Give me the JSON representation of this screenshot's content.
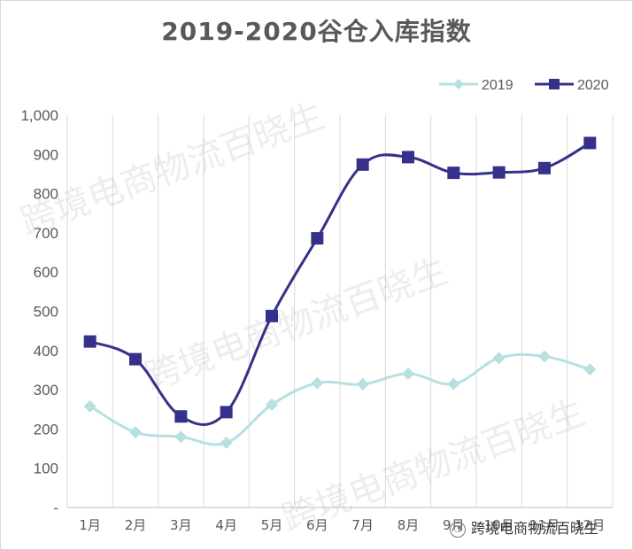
{
  "chart_data": {
    "type": "line",
    "title": "2019-2020谷仓入库指数",
    "categories": [
      "1月",
      "2月",
      "3月",
      "4月",
      "5月",
      "6月",
      "7月",
      "8月",
      "9月",
      "10月",
      "11月",
      "12月"
    ],
    "y_ticks": [
      "-",
      "100",
      "200",
      "300",
      "400",
      "500",
      "600",
      "700",
      "800",
      "900",
      "1,000"
    ],
    "ylim": [
      0,
      1000
    ],
    "grid": "vertical",
    "legend_position": "top-right",
    "series": [
      {
        "name": "2019",
        "color": "#b7e0e0",
        "marker": "diamond",
        "values": [
          258,
          192,
          180,
          165,
          262,
          317,
          314,
          341,
          315,
          381,
          385,
          352
        ]
      },
      {
        "name": "2020",
        "color": "#35318a",
        "marker": "square",
        "values": [
          423,
          378,
          232,
          243,
          488,
          686,
          874,
          893,
          853,
          854,
          865,
          929
        ]
      }
    ]
  },
  "watermark": "跨境电商物流百晓生",
  "credit": {
    "text": "跨境电商物流百晓生",
    "icon": "wechat-icon"
  }
}
